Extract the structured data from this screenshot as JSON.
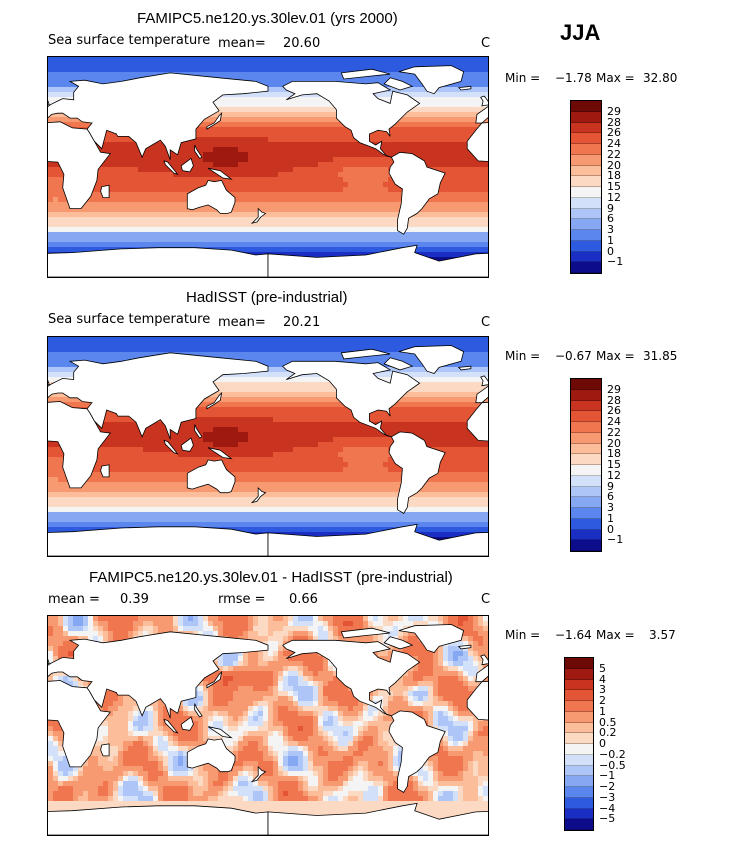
{
  "season": "JJA",
  "colors": {
    "sst": [
      "#0d0d8c",
      "#1a2ec4",
      "#2e5ae0",
      "#5a86ee",
      "#86a8f3",
      "#aec6f7",
      "#d2e0fa",
      "#f4f4f4",
      "#fcd9c2",
      "#fbbd9a",
      "#f79a72",
      "#f07650",
      "#e35534",
      "#c8341f",
      "#9e1a10",
      "#6e0a06"
    ],
    "diff": [
      "#0d0d8c",
      "#1a2ec4",
      "#2e5ae0",
      "#5a86ee",
      "#86a8f3",
      "#aec6f7",
      "#d2e0fa",
      "#f4f4f4",
      "#fcd9c2",
      "#fbbd9a",
      "#f79a72",
      "#f07650",
      "#e35534",
      "#c8341f",
      "#9e1a10",
      "#6e0a06"
    ],
    "land": "#ffffff",
    "coast": "#000000"
  },
  "panels": [
    {
      "title": "FAMIPC5.ne120.ys.30lev.01 (yrs 2000)",
      "variable": "Sea surface temperature",
      "mean_label": "mean=",
      "mean_value": "20.60",
      "units": "C",
      "min_label": "Min =",
      "min_value": "−1.78",
      "max_label": "Max =",
      "max_value": "32.80",
      "levels": [
        "29",
        "28",
        "26",
        "24",
        "22",
        "20",
        "18",
        "15",
        "12",
        "9",
        "6",
        "3",
        "1",
        "0",
        "−1"
      ]
    },
    {
      "title": "HadISST (pre-industrial)",
      "variable": "Sea surface temperature",
      "mean_label": "mean=",
      "mean_value": "20.21",
      "units": "C",
      "min_label": "Min =",
      "min_value": "−0.67",
      "max_label": "Max =",
      "max_value": "31.85",
      "levels": [
        "29",
        "28",
        "26",
        "24",
        "22",
        "20",
        "18",
        "15",
        "12",
        "9",
        "6",
        "3",
        "1",
        "0",
        "−1"
      ]
    },
    {
      "title": "FAMIPC5.ne120.ys.30lev.01 - HadISST (pre-industrial)",
      "mean_label": "mean =",
      "mean_value": "0.39",
      "rmse_label": "rmse =",
      "rmse_value": "0.66",
      "units": "C",
      "min_label": "Min =",
      "min_value": "−1.64",
      "max_label": "Max =",
      "max_value": "3.57",
      "levels": [
        "5",
        "4",
        "3",
        "2",
        "1",
        "0.5",
        "0.2",
        "0",
        "−0.2",
        "−0.5",
        "−1",
        "−2",
        "−3",
        "−4",
        "−5"
      ]
    }
  ],
  "chart_data": [
    {
      "type": "heatmap",
      "title": "FAMIPC5.ne120.ys.30lev.01 (yrs 2000)",
      "variable": "Sea surface temperature",
      "units": "C",
      "mean": 20.6,
      "min": -1.78,
      "max": 32.8,
      "contour_levels": [
        -1,
        0,
        1,
        3,
        6,
        9,
        12,
        15,
        18,
        20,
        22,
        24,
        26,
        28,
        29
      ]
    },
    {
      "type": "heatmap",
      "title": "HadISST (pre-industrial)",
      "variable": "Sea surface temperature",
      "units": "C",
      "mean": 20.21,
      "min": -0.67,
      "max": 31.85,
      "contour_levels": [
        -1,
        0,
        1,
        3,
        6,
        9,
        12,
        15,
        18,
        20,
        22,
        24,
        26,
        28,
        29
      ]
    },
    {
      "type": "heatmap",
      "title": "FAMIPC5.ne120.ys.30lev.01 - HadISST (pre-industrial)",
      "units": "C",
      "mean": 0.39,
      "rmse": 0.66,
      "min": -1.64,
      "max": 3.57,
      "contour_levels": [
        -5,
        -4,
        -3,
        -2,
        -1,
        -0.5,
        -0.2,
        0,
        0.2,
        0.5,
        1,
        2,
        3,
        4,
        5
      ]
    }
  ]
}
